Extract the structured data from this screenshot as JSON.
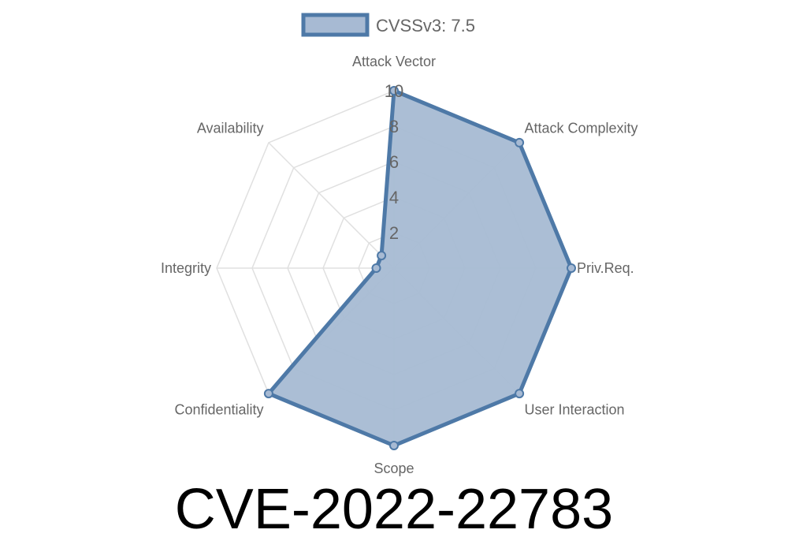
{
  "chart_data": {
    "type": "radar",
    "axes": [
      "Attack Vector",
      "Attack Complexity",
      "Priv.Req.",
      "User Interaction",
      "Scope",
      "Confidentiality",
      "Integrity",
      "Availability"
    ],
    "series": [
      {
        "name": "CVSSv3: 7.5",
        "values": [
          10,
          10,
          10,
          10,
          10,
          10,
          1,
          1
        ]
      }
    ],
    "rlim": [
      0,
      10
    ],
    "ticks": [
      "2",
      "4",
      "6",
      "8",
      "10"
    ],
    "grid": true,
    "legend": "top",
    "colors": {
      "line": "#4e79a7",
      "fill": "#a7bad3",
      "grid": "#e0e0e0"
    }
  },
  "title": "CVE-2022-22783"
}
